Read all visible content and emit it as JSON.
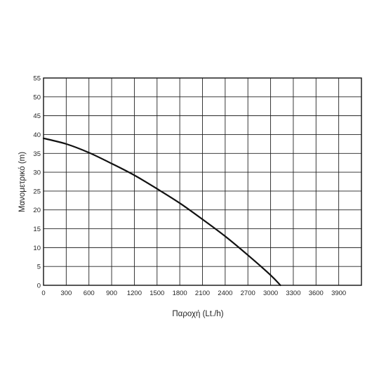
{
  "chart_data": {
    "type": "line",
    "title": "",
    "xlabel": "Παροχή (Lt./h)",
    "ylabel": "Μανομετρικό  (m)",
    "xlim": [
      0,
      4200
    ],
    "ylim": [
      0,
      55
    ],
    "xticks": [
      0,
      300,
      600,
      900,
      1200,
      1500,
      1800,
      2100,
      2400,
      2700,
      3000,
      3300,
      3600,
      3900
    ],
    "yticks": [
      0,
      5,
      10,
      15,
      20,
      25,
      30,
      35,
      40,
      45,
      50,
      55
    ],
    "grid": true,
    "x": [
      0,
      300,
      600,
      900,
      1200,
      1500,
      1800,
      2100,
      2400,
      2700,
      3000,
      3130
    ],
    "y": [
      39,
      37.5,
      35.2,
      32.3,
      29.2,
      25.6,
      21.8,
      17.5,
      13,
      8,
      2.7,
      0
    ],
    "colors": {
      "line": "#111111",
      "grid": "#222222",
      "text": "#222222"
    }
  }
}
